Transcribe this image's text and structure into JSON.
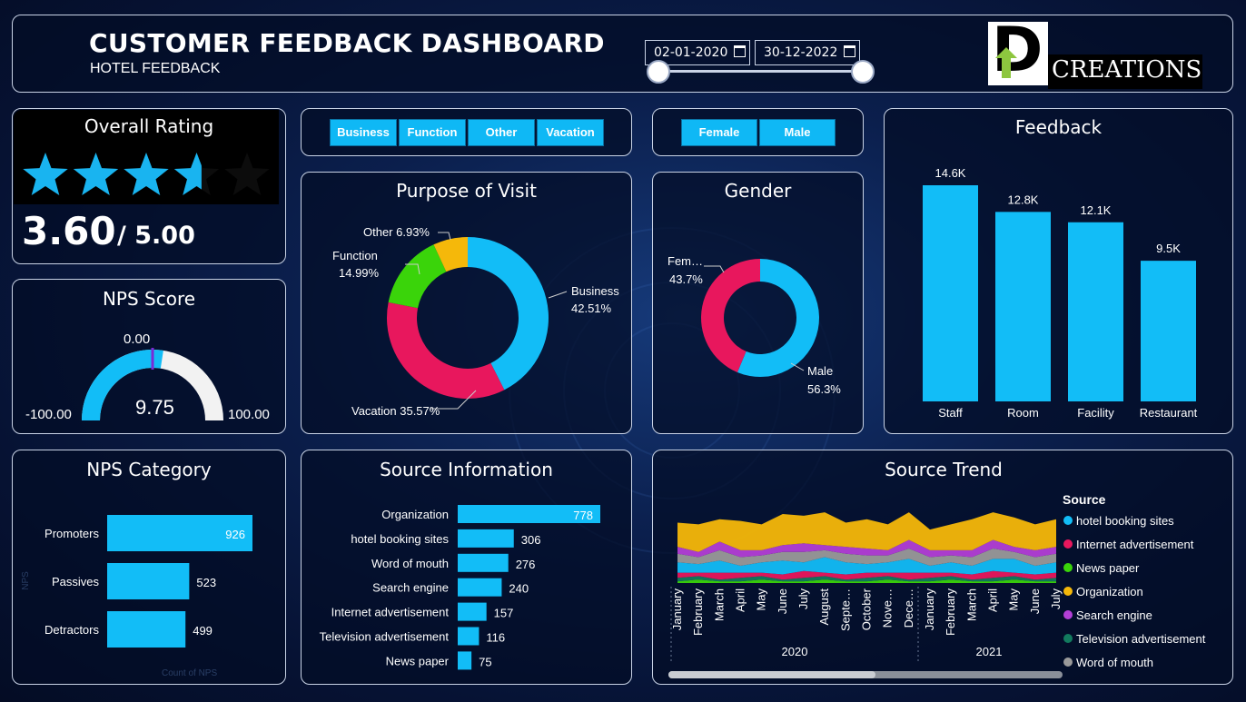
{
  "header": {
    "title": "CUSTOMER FEEDBACK DASHBOARD",
    "subtitle": "HOTEL FEEDBACK",
    "date_start": "02-01-2020",
    "date_end": "30-12-2022",
    "logo_letter": "D",
    "logo_text": "CREATIONS"
  },
  "overall_rating": {
    "title": "Overall Rating",
    "value": "3.60",
    "max": "/ 5.00",
    "stars_filled": 3.6,
    "star_color": "#19b4f0"
  },
  "nps_score": {
    "title": "NPS Score",
    "min_label": "-100.00",
    "max_label": "100.00",
    "target_label": "0.00",
    "value_label": "9.75",
    "value": 9.75
  },
  "purpose_slicer": {
    "items": [
      "Business",
      "Function",
      "Other",
      "Vacation"
    ]
  },
  "gender_slicer": {
    "items": [
      "Female",
      "Male"
    ]
  },
  "purpose_of_visit": {
    "title": "Purpose of Visit",
    "labels": {
      "business": "Business",
      "business_pct": "42.51%",
      "vacation": "Vacation 35.57%",
      "function": "Function",
      "function_pct": "14.99%",
      "other": "Other 6.93%"
    }
  },
  "gender": {
    "title": "Gender",
    "labels": {
      "female": "Fem…",
      "female_pct": "43.7%",
      "male": "Male",
      "male_pct": "56.3%"
    }
  },
  "nps_category": {
    "title": "NPS Category",
    "axis_y": "NPS",
    "axis_x": "Count of NPS"
  },
  "source_info": {
    "title": "Source Information"
  },
  "source_trend": {
    "title": "Source Trend",
    "legend_title": "Source",
    "months": [
      "January",
      "February",
      "March",
      "April",
      "May",
      "June",
      "July",
      "August",
      "Septe…",
      "October",
      "Nove…",
      "Dece…",
      "January",
      "February",
      "March",
      "April",
      "May",
      "June",
      "July"
    ],
    "years": [
      "2020",
      "2021"
    ]
  },
  "feedback": {
    "title": "Feedback"
  },
  "colors": {
    "accent": "#12bdf7",
    "pink": "#e8175d",
    "green": "#3ad40a",
    "orange": "#f5b80a",
    "purple": "#b33fd6",
    "teal": "#127a5e",
    "grey": "#9a9a9a"
  },
  "chart_data": [
    {
      "type": "pie",
      "title": "Purpose of Visit",
      "categories": [
        "Business",
        "Vacation",
        "Function",
        "Other"
      ],
      "values": [
        42.51,
        35.57,
        14.99,
        6.93
      ],
      "colors": [
        "#12bdf7",
        "#e8175d",
        "#3ad40a",
        "#f5b80a"
      ]
    },
    {
      "type": "pie",
      "title": "Gender",
      "categories": [
        "Male",
        "Female"
      ],
      "values": [
        56.3,
        43.7
      ],
      "colors": [
        "#12bdf7",
        "#e8175d"
      ]
    },
    {
      "type": "bar",
      "title": "Feedback",
      "categories": [
        "Staff",
        "Room",
        "Facility",
        "Restaurant"
      ],
      "values": [
        14.6,
        12.8,
        12.1,
        9.5
      ],
      "value_labels": [
        "14.6K",
        "12.8K",
        "12.1K",
        "9.5K"
      ]
    },
    {
      "type": "bar",
      "orientation": "horizontal",
      "title": "NPS Category",
      "categories": [
        "Promoters",
        "Passives",
        "Detractors"
      ],
      "values": [
        926,
        523,
        499
      ],
      "value_labels": [
        "926",
        "523",
        "499"
      ]
    },
    {
      "type": "bar",
      "orientation": "horizontal",
      "title": "Source Information",
      "categories": [
        "Organization",
        "hotel booking sites",
        "Word of mouth",
        "Search engine",
        "Internet advertisement",
        "Television advertisement",
        "News paper"
      ],
      "values": [
        778,
        306,
        276,
        240,
        157,
        116,
        75
      ],
      "value_labels": [
        "778",
        "306",
        "276",
        "240",
        "157",
        "116",
        "75"
      ]
    },
    {
      "type": "area",
      "title": "Source Trend",
      "legend_position": "right",
      "series": [
        {
          "name": "hotel booking sites",
          "color": "#12bdf7",
          "values": [
            6,
            5,
            7,
            4,
            6,
            8,
            5,
            9,
            7,
            5,
            6,
            8,
            4,
            6,
            5,
            7,
            8,
            5,
            6
          ]
        },
        {
          "name": "Internet advertisement",
          "color": "#e8175d",
          "values": [
            3,
            2,
            4,
            3,
            2,
            3,
            4,
            2,
            3,
            3,
            2,
            4,
            3,
            2,
            3,
            4,
            2,
            3,
            3
          ]
        },
        {
          "name": "News paper",
          "color": "#3ad40a",
          "values": [
            1,
            2,
            1,
            1,
            2,
            1,
            1,
            2,
            1,
            1,
            2,
            1,
            1,
            2,
            1,
            1,
            2,
            1,
            1
          ]
        },
        {
          "name": "Organization",
          "color": "#f5b80a",
          "values": [
            14,
            16,
            13,
            17,
            15,
            18,
            16,
            19,
            14,
            17,
            15,
            16,
            12,
            15,
            18,
            16,
            17,
            15,
            16
          ]
        },
        {
          "name": "Search engine",
          "color": "#b33fd6",
          "values": [
            4,
            3,
            5,
            4,
            3,
            4,
            5,
            3,
            4,
            4,
            3,
            5,
            4,
            3,
            4,
            5,
            3,
            4,
            4
          ]
        },
        {
          "name": "Television advertisement",
          "color": "#127a5e",
          "values": [
            2,
            2,
            1,
            2,
            2,
            1,
            2,
            2,
            1,
            2,
            2,
            1,
            2,
            2,
            1,
            2,
            2,
            1,
            2
          ]
        },
        {
          "name": "Word of mouth",
          "color": "#9a9a9a",
          "values": [
            5,
            4,
            6,
            5,
            4,
            5,
            6,
            4,
            5,
            5,
            4,
            6,
            5,
            4,
            5,
            6,
            4,
            5,
            5
          ]
        }
      ]
    }
  ]
}
